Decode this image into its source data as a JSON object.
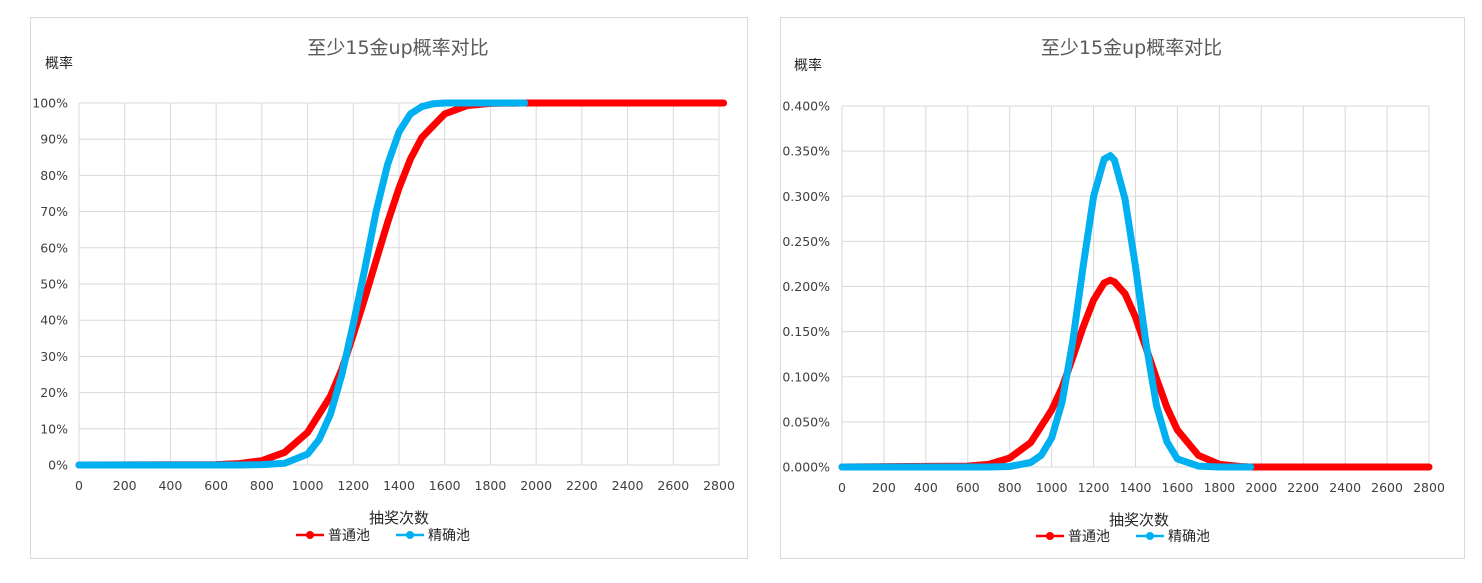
{
  "chart_data": [
    {
      "type": "line",
      "title": "至少15金up概率对比",
      "xlabel": "抽奖次数",
      "ylabel": "概率",
      "xlim": [
        0,
        2800
      ],
      "ylim": [
        0,
        1
      ],
      "x_ticks": [
        0,
        200,
        400,
        600,
        800,
        1000,
        1200,
        1400,
        1600,
        1800,
        2000,
        2200,
        2400,
        2600,
        2800
      ],
      "x_tick_labels": [
        "0",
        "200",
        "400",
        "600",
        "800",
        "1000",
        "1200",
        "1400",
        "1600",
        "1800",
        "2000",
        "2200",
        "2400",
        "2600",
        "2800"
      ],
      "y_ticks": [
        0,
        0.1,
        0.2,
        0.3,
        0.4,
        0.5,
        0.6,
        0.7,
        0.8,
        0.9,
        1.0
      ],
      "y_tick_labels": [
        "0%",
        "10%",
        "20%",
        "30%",
        "40%",
        "50%",
        "60%",
        "70%",
        "80%",
        "90%",
        "100%"
      ],
      "grid": true,
      "legend": "bottom",
      "series": [
        {
          "name": "普通池",
          "color": "#ff0000",
          "x": [
            0,
            600,
            700,
            800,
            900,
            1000,
            1100,
            1150,
            1200,
            1250,
            1300,
            1350,
            1400,
            1450,
            1500,
            1600,
            1700,
            1800,
            1950,
            2100,
            2300,
            2500,
            2700,
            2820
          ],
          "values": [
            0,
            0.001,
            0.004,
            0.012,
            0.035,
            0.09,
            0.19,
            0.265,
            0.36,
            0.46,
            0.565,
            0.67,
            0.765,
            0.845,
            0.905,
            0.97,
            0.993,
            0.999,
            1,
            1,
            1,
            1,
            1,
            1
          ]
        },
        {
          "name": "精确池",
          "color": "#00b0f0",
          "x": [
            0,
            700,
            800,
            900,
            1000,
            1050,
            1100,
            1150,
            1200,
            1250,
            1300,
            1350,
            1400,
            1450,
            1500,
            1550,
            1600,
            1700,
            1800,
            1950
          ],
          "values": [
            0,
            0,
            0.001,
            0.005,
            0.03,
            0.07,
            0.14,
            0.25,
            0.39,
            0.54,
            0.7,
            0.83,
            0.92,
            0.97,
            0.99,
            0.998,
            1,
            1,
            1,
            1
          ]
        }
      ]
    },
    {
      "type": "line",
      "title": "至少15金up概率对比",
      "xlabel": "抽奖次数",
      "ylabel": "概率",
      "xlim": [
        0,
        2800
      ],
      "ylim": [
        0,
        0.004
      ],
      "x_ticks": [
        0,
        200,
        400,
        600,
        800,
        1000,
        1200,
        1400,
        1600,
        1800,
        2000,
        2200,
        2400,
        2600,
        2800
      ],
      "x_tick_labels": [
        "0",
        "200",
        "400",
        "600",
        "800",
        "1000",
        "1200",
        "1400",
        "1600",
        "1800",
        "2000",
        "2200",
        "2400",
        "2600",
        "2800"
      ],
      "y_ticks": [
        0,
        0.0005,
        0.001,
        0.0015,
        0.002,
        0.0025,
        0.003,
        0.0035,
        0.004
      ],
      "y_tick_labels": [
        "0.000%",
        "0.050%",
        "0.100%",
        "0.150%",
        "0.200%",
        "0.250%",
        "0.300%",
        "0.350%",
        "0.400%"
      ],
      "grid": true,
      "legend": "bottom",
      "series": [
        {
          "name": "普通池",
          "color": "#ff0000",
          "x": [
            0,
            600,
            700,
            800,
            900,
            1000,
            1050,
            1100,
            1150,
            1200,
            1250,
            1280,
            1300,
            1350,
            1400,
            1450,
            1500,
            1550,
            1600,
            1700,
            1800,
            1900,
            1950,
            2200,
            2500,
            2800
          ],
          "values": [
            0,
            1e-05,
            3e-05,
            0.0001,
            0.00027,
            0.00063,
            0.00088,
            0.00121,
            0.00155,
            0.00185,
            0.00204,
            0.00207,
            0.00205,
            0.00192,
            0.00166,
            0.00132,
            0.00098,
            0.00066,
            0.00041,
            0.00013,
            3e-05,
            5e-06,
            0,
            0,
            0,
            0
          ]
        },
        {
          "name": "精确池",
          "color": "#00b0f0",
          "x": [
            0,
            700,
            800,
            900,
            950,
            1000,
            1050,
            1100,
            1150,
            1200,
            1250,
            1280,
            1300,
            1350,
            1400,
            1450,
            1500,
            1550,
            1600,
            1700,
            1800,
            1950
          ],
          "values": [
            0,
            0,
            5e-06,
            5e-05,
            0.00013,
            0.00032,
            0.00072,
            0.00138,
            0.00222,
            0.003,
            0.00341,
            0.00345,
            0.0034,
            0.00297,
            0.00222,
            0.00137,
            0.00068,
            0.00028,
            9e-05,
            1e-05,
            0,
            0
          ]
        }
      ]
    }
  ]
}
